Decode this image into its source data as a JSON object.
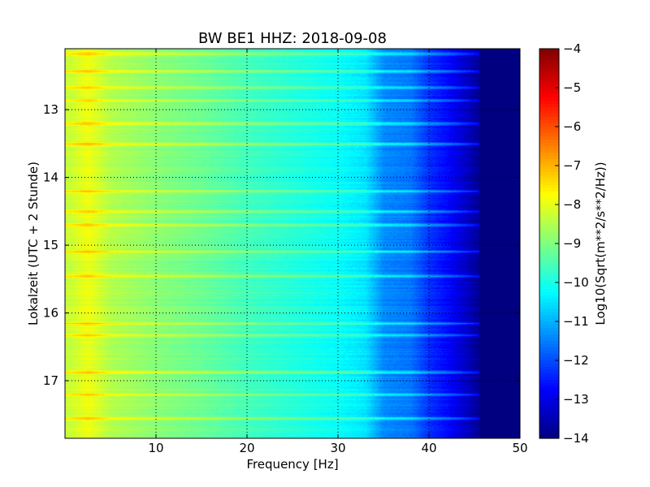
{
  "chart_data": {
    "type": "heatmap",
    "title": "BW BE1 HHZ: 2018-09-08",
    "xlabel": "Frequency [Hz]",
    "ylabel": "Lokalzeit (UTC + 2 Stunde)",
    "xlim": [
      0,
      50
    ],
    "ylim": [
      12.1,
      17.85
    ],
    "y_inverted": true,
    "x_ticks": [
      10,
      20,
      30,
      40,
      50
    ],
    "y_ticks": [
      13,
      14,
      15,
      16,
      17
    ],
    "grid": true,
    "grid_style": "dotted",
    "colormap": "jet",
    "colorbar": {
      "label": "Log10(Sqrt(m**2/s**2/Hz))",
      "range": [
        -14,
        -4
      ],
      "ticks": [
        -4,
        -5,
        -6,
        -7,
        -8,
        -9,
        -10,
        -11,
        -12,
        -13,
        -14
      ]
    },
    "spectral_profile": [
      {
        "x": 0.5,
        "v": -8.3
      },
      {
        "x": 2.5,
        "v": -7.9
      },
      {
        "x": 5,
        "v": -8.5
      },
      {
        "x": 10,
        "v": -8.9
      },
      {
        "x": 15,
        "v": -9.2
      },
      {
        "x": 20,
        "v": -9.6
      },
      {
        "x": 25,
        "v": -9.9
      },
      {
        "x": 30,
        "v": -10.2
      },
      {
        "x": 33,
        "v": -10.5
      },
      {
        "x": 35,
        "v": -11.4
      },
      {
        "x": 38,
        "v": -11.6
      },
      {
        "x": 40,
        "v": -12.3
      },
      {
        "x": 42,
        "v": -12.7
      },
      {
        "x": 44,
        "v": -13.3
      },
      {
        "x": 46,
        "v": -14
      },
      {
        "x": 50,
        "v": -14
      }
    ],
    "bright_bands_hours": [
      12.17,
      12.43,
      12.67,
      12.86,
      13.2,
      13.5,
      14.2,
      14.5,
      14.7,
      15.09,
      15.45,
      16.15,
      16.32,
      16.87,
      17.2,
      17.55
    ]
  }
}
